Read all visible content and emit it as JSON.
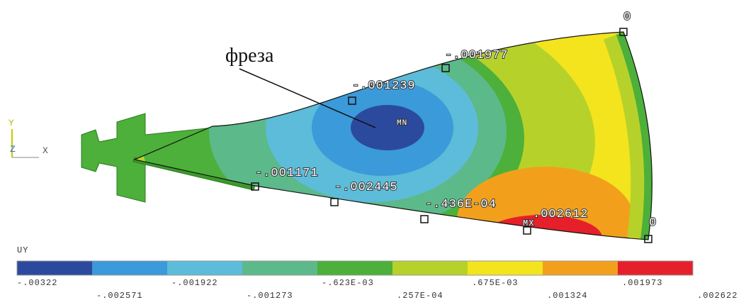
{
  "callout": "фреза",
  "triad": {
    "y": "Y",
    "z": "Z",
    "x": "X"
  },
  "plot_labels": [
    "0",
    "-.001977",
    "-.001239",
    "MN",
    "-.001171",
    "-.002445",
    "-.436E-04",
    "MX",
    ".002612",
    "0"
  ],
  "legend": {
    "title": "UY",
    "colors": [
      "#2b4a9e",
      "#3b9ad9",
      "#5cbcd9",
      "#5cb98a",
      "#4cb03a",
      "#b6d22a",
      "#f3e41e",
      "#f2a01c",
      "#e5202a"
    ],
    "labels": [
      "-.00322",
      "-.002571",
      "-.001922",
      "-.001273",
      "-.623E-03",
      ".257E-04",
      ".675E-03",
      ".001324",
      ".001973",
      ".002622"
    ]
  }
}
